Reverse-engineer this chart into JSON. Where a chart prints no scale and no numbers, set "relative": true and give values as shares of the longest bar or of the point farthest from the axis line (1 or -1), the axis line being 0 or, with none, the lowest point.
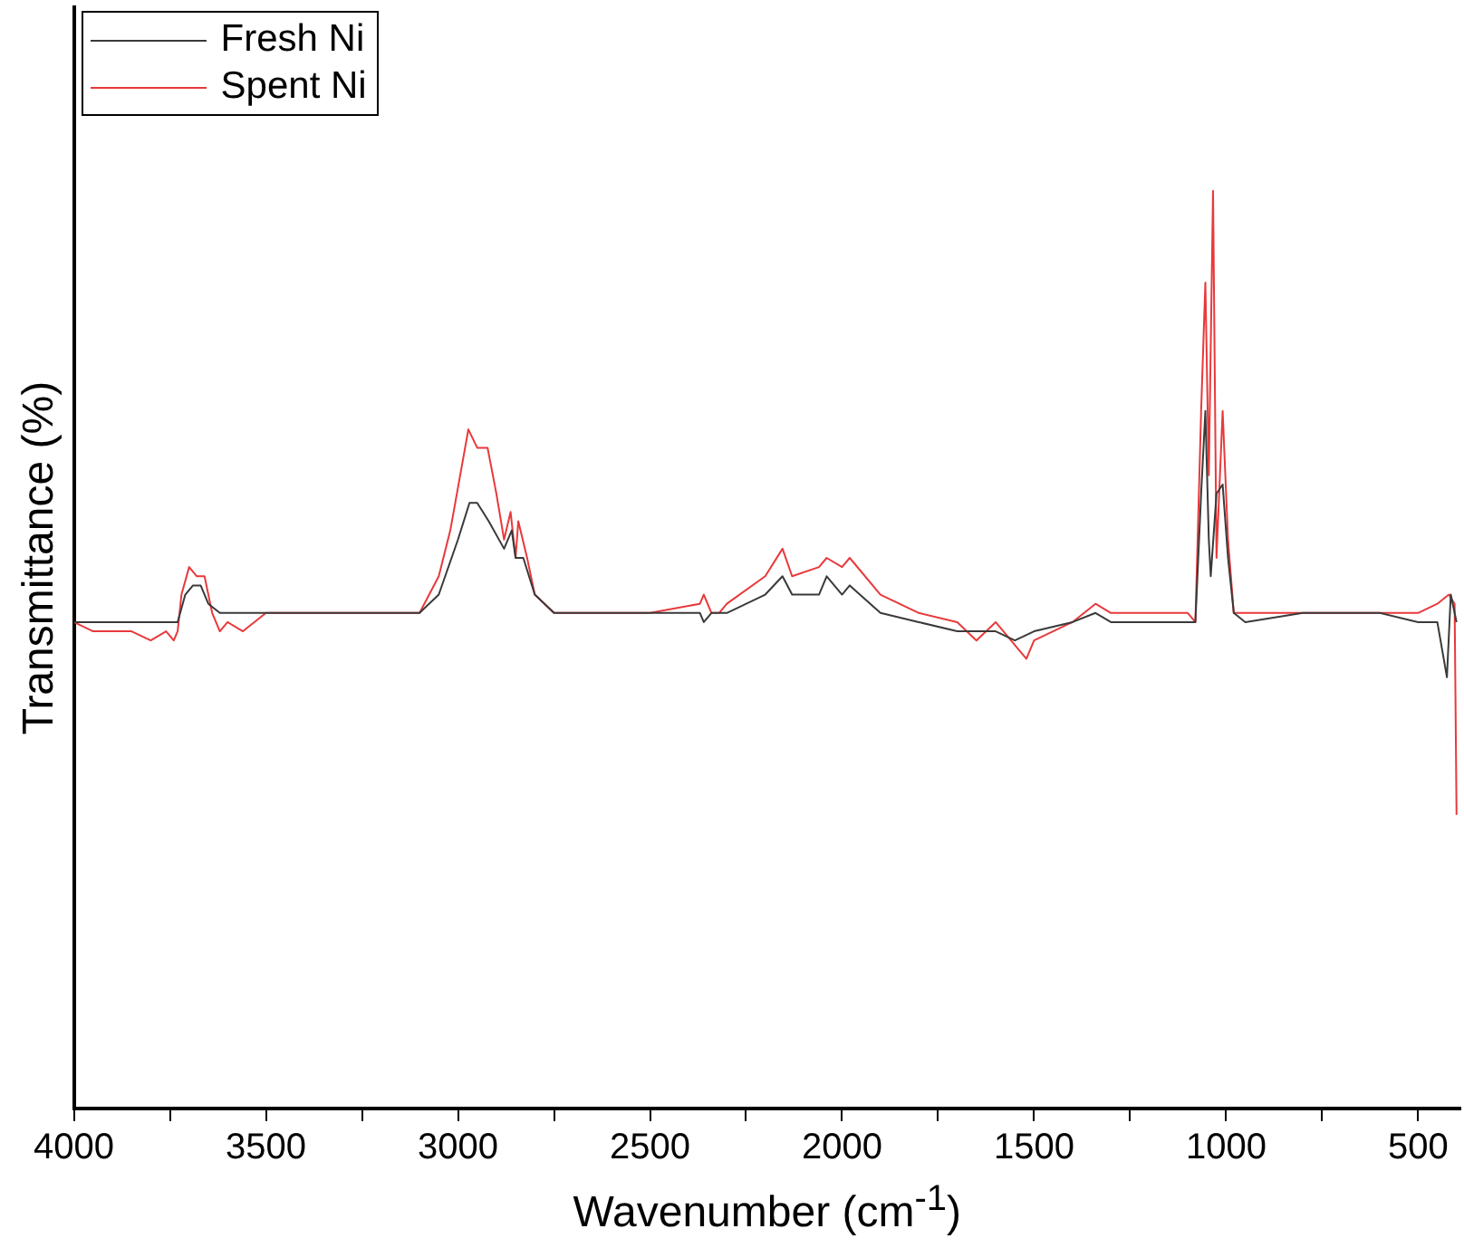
{
  "chart_data": {
    "type": "line",
    "xlabel": "Wavenumber (cm$^{-1}$)",
    "ylabel": "Transmittance (%)",
    "relative": true,
    "legend": "top left",
    "grid": false,
    "tick_labels": "x",
    "marker": "none",
    "line_style": "solid",
    "xlim": [
      4000,
      390
    ],
    "xticks": [
      4000,
      {
        "value": 3750,
        "label": null
      },
      3500,
      {
        "value": 3250,
        "label": null
      },
      3000,
      {
        "value": 2750,
        "label": null
      },
      2500,
      {
        "value": 2250,
        "label": null
      },
      2000,
      {
        "value": 1750,
        "label": null
      },
      1500,
      {
        "value": 1250,
        "label": null
      },
      1000,
      {
        "value": 750,
        "label": null
      },
      500
    ],
    "series": [
      {
        "name": "Fresh Ni",
        "color": "#3a3a3a",
        "x": [
          4000,
          3900,
          3800,
          3730,
          3710,
          3690,
          3670,
          3650,
          3620,
          3550,
          3400,
          3200,
          3100,
          3050,
          3000,
          2970,
          2950,
          2920,
          2880,
          2860,
          2850,
          2830,
          2800,
          2750,
          2500,
          2370,
          2360,
          2340,
          2300,
          2200,
          2155,
          2130,
          2060,
          2040,
          2000,
          1980,
          1900,
          1800,
          1700,
          1600,
          1550,
          1500,
          1400,
          1340,
          1300,
          1200,
          1080,
          1065,
          1054,
          1045,
          1040,
          1025,
          1009,
          995,
          980,
          950,
          800,
          700,
          600,
          500,
          450,
          425,
          415,
          400
        ],
        "values": [
          0.53,
          0.53,
          0.53,
          0.53,
          0.56,
          0.57,
          0.57,
          0.55,
          0.54,
          0.54,
          0.54,
          0.54,
          0.54,
          0.56,
          0.62,
          0.66,
          0.66,
          0.64,
          0.61,
          0.63,
          0.6,
          0.6,
          0.56,
          0.54,
          0.54,
          0.54,
          0.53,
          0.54,
          0.54,
          0.56,
          0.58,
          0.56,
          0.56,
          0.58,
          0.56,
          0.57,
          0.54,
          0.53,
          0.52,
          0.52,
          0.51,
          0.52,
          0.53,
          0.54,
          0.53,
          0.53,
          0.53,
          0.67,
          0.76,
          0.62,
          0.58,
          0.67,
          0.68,
          0.6,
          0.54,
          0.53,
          0.54,
          0.54,
          0.54,
          0.53,
          0.53,
          0.47,
          0.56,
          0.53
        ]
      },
      {
        "name": "Spent Ni",
        "color": "#e8393b",
        "x": [
          4000,
          3950,
          3900,
          3850,
          3800,
          3760,
          3740,
          3730,
          3720,
          3700,
          3680,
          3660,
          3640,
          3620,
          3600,
          3560,
          3500,
          3400,
          3200,
          3100,
          3050,
          3020,
          2990,
          2973,
          2950,
          2923,
          2900,
          2880,
          2863,
          2850,
          2843,
          2820,
          2800,
          2750,
          2500,
          2370,
          2360,
          2340,
          2320,
          2300,
          2200,
          2155,
          2130,
          2060,
          2040,
          2000,
          1980,
          1900,
          1800,
          1700,
          1650,
          1600,
          1560,
          1540,
          1520,
          1500,
          1400,
          1340,
          1300,
          1250,
          1200,
          1100,
          1080,
          1065,
          1054,
          1045,
          1034,
          1025,
          1009,
          995,
          980,
          950,
          800,
          700,
          600,
          500,
          450,
          420,
          405,
          400
        ],
        "values": [
          0.53,
          0.52,
          0.52,
          0.52,
          0.51,
          0.52,
          0.51,
          0.52,
          0.56,
          0.59,
          0.58,
          0.58,
          0.54,
          0.52,
          0.53,
          0.52,
          0.54,
          0.54,
          0.54,
          0.54,
          0.58,
          0.63,
          0.7,
          0.74,
          0.72,
          0.72,
          0.67,
          0.62,
          0.65,
          0.6,
          0.64,
          0.6,
          0.56,
          0.54,
          0.54,
          0.55,
          0.56,
          0.54,
          0.54,
          0.55,
          0.58,
          0.61,
          0.58,
          0.59,
          0.6,
          0.59,
          0.6,
          0.56,
          0.54,
          0.53,
          0.51,
          0.53,
          0.51,
          0.5,
          0.49,
          0.51,
          0.53,
          0.55,
          0.54,
          0.54,
          0.54,
          0.54,
          0.53,
          0.76,
          0.9,
          0.69,
          1,
          0.6,
          0.76,
          0.62,
          0.54,
          0.54,
          0.54,
          0.54,
          0.54,
          0.54,
          0.55,
          0.56,
          0.55,
          0.32
        ]
      }
    ]
  }
}
